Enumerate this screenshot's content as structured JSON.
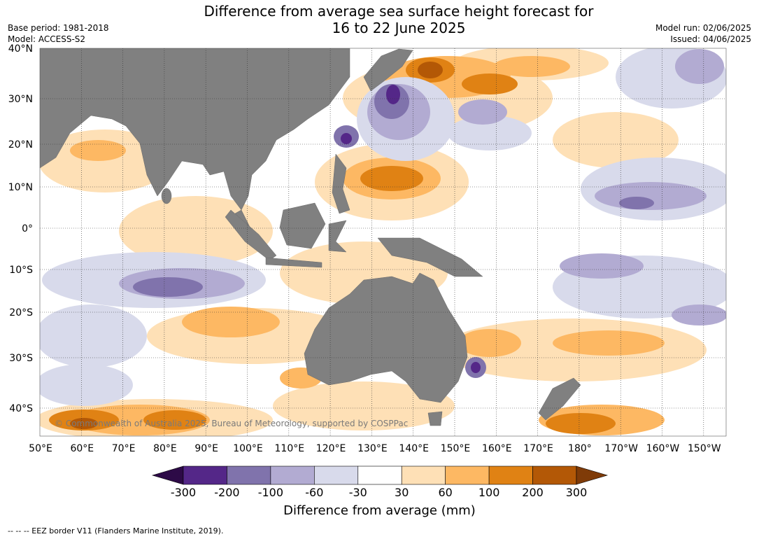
{
  "header": {
    "title_line1": "Difference from average sea surface height forecast for",
    "title_line2": "16 to 22 June 2025",
    "base_period": "Base period: 1981-2018",
    "model": "Model: ACCESS-S2",
    "model_run": "Model run: 02/06/2025",
    "issued": "Issued: 04/06/2025"
  },
  "map": {
    "lat_labels": [
      "40°N",
      "30°N",
      "20°N",
      "10°N",
      "0°",
      "10°S",
      "20°S",
      "30°S",
      "40°S"
    ],
    "lon_labels": [
      "50°E",
      "60°E",
      "70°E",
      "80°E",
      "90°E",
      "100°E",
      "110°E",
      "120°E",
      "130°E",
      "140°E",
      "150°E",
      "160°E",
      "170°E",
      "180°",
      "170°W",
      "160°W",
      "150°W"
    ],
    "copyright": "© Commonwealth of Australia 2025, Bureau of Meteorology, supported by COSPPac",
    "colors": {
      "land": "#808080",
      "ocean": "#ffffff"
    }
  },
  "colorbar": {
    "ticks": [
      "-300",
      "-200",
      "-100",
      "-60",
      "-30",
      "30",
      "60",
      "100",
      "200",
      "300"
    ],
    "colors": [
      "#2d0a47",
      "#542788",
      "#8073ac",
      "#b2abd2",
      "#d8daeb",
      "#ffffff",
      "#fee0b6",
      "#fdb863",
      "#e08214",
      "#b35806",
      "#7f3b08"
    ],
    "label": "Difference from average (mm)"
  },
  "footer": {
    "legend_note": "-- -- -- EEZ border V11 (Flanders Marine Institute, 2019)."
  }
}
